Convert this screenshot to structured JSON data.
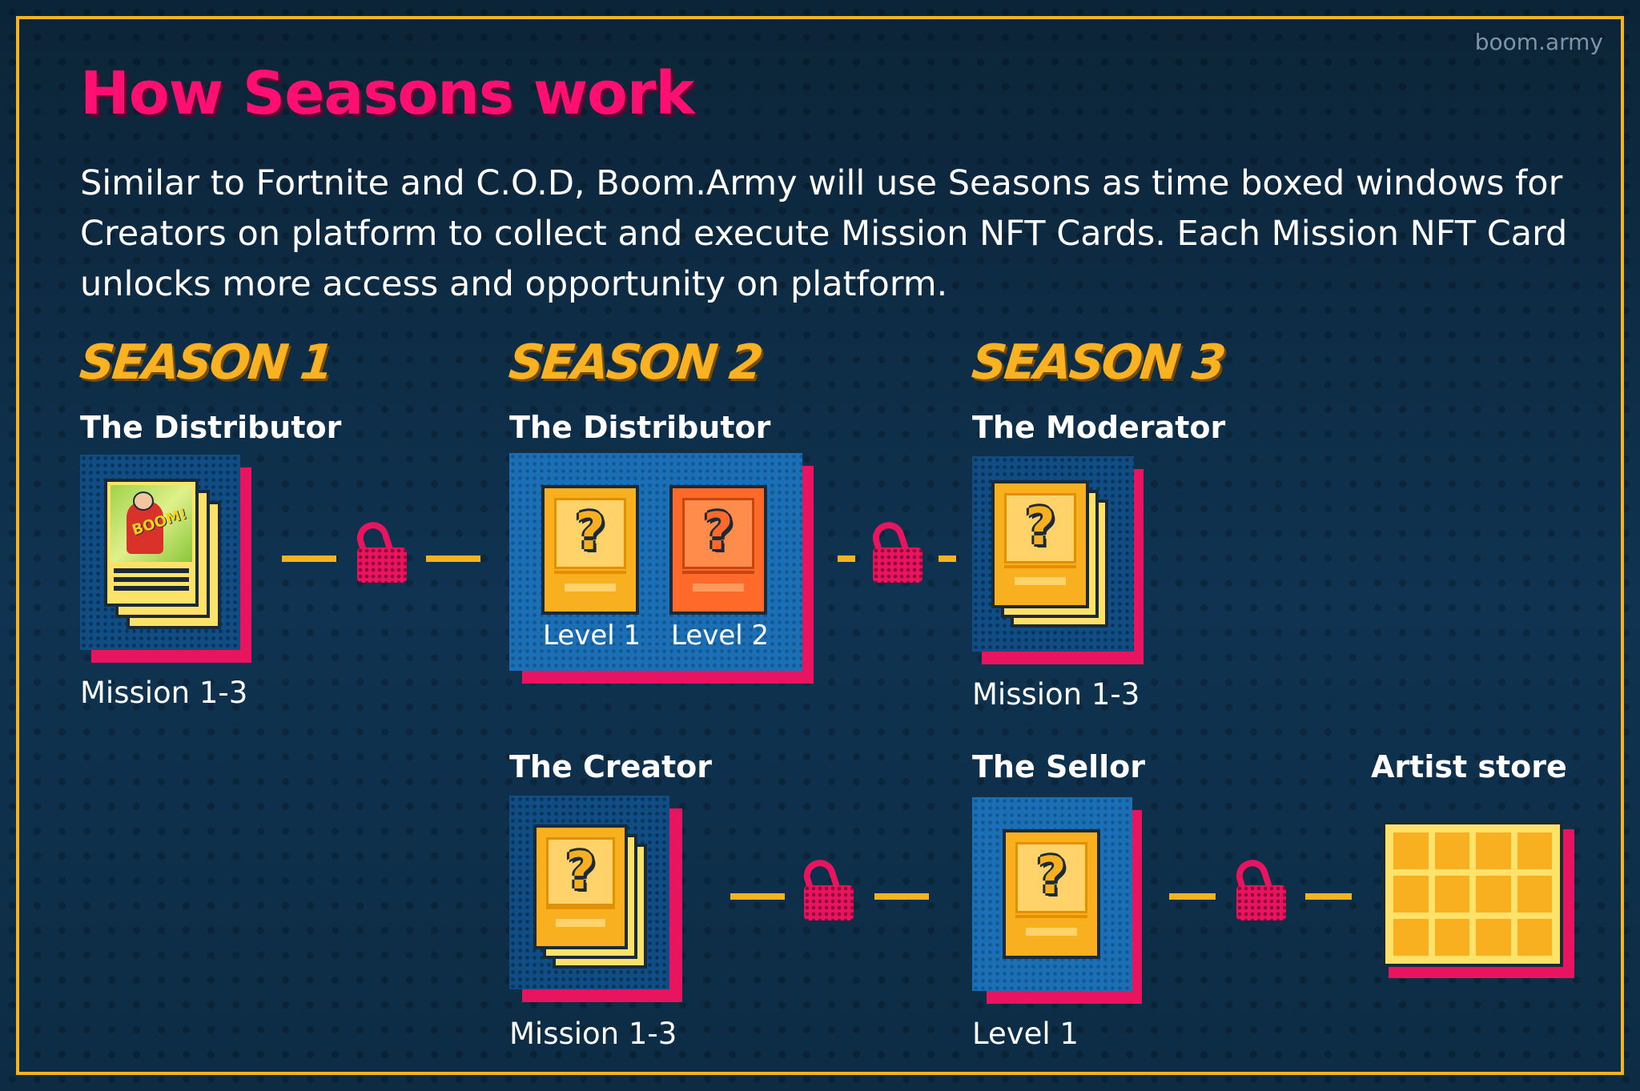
{
  "brand": "boom.army",
  "title": "How Seasons work",
  "intro": "Similar to Fortnite and C.O.D, Boom.Army will use Seasons as time boxed windows for Creators on platform to collect and execute Mission NFT Cards. Each Mission NFT Card unlocks more access and opportunity on platform.",
  "seasons": [
    "SEASON 1",
    "SEASON 2",
    "SEASON 3"
  ],
  "season1": {
    "label": "The Distributor",
    "caption": "Mission 1-3"
  },
  "season2": {
    "distributor": {
      "label": "The Distributor",
      "levels": [
        "Level 1",
        "Level 2"
      ]
    },
    "creator": {
      "label": "The Creator",
      "caption": "Mission 1-3"
    }
  },
  "season3": {
    "moderator": {
      "label": "The Moderator",
      "caption": "Mission 1-3"
    },
    "sellor": {
      "label": "The Sellor",
      "caption": "Level 1"
    },
    "store": {
      "label": "Artist store"
    }
  },
  "colors": {
    "accent_pink": "#ff0f72",
    "season_gold": "#f9b222",
    "frame": "#f4b321",
    "lock": "#e8145f"
  },
  "icons": [
    "unlock-icon",
    "mission-card-icon",
    "artist-store-grid-icon"
  ]
}
